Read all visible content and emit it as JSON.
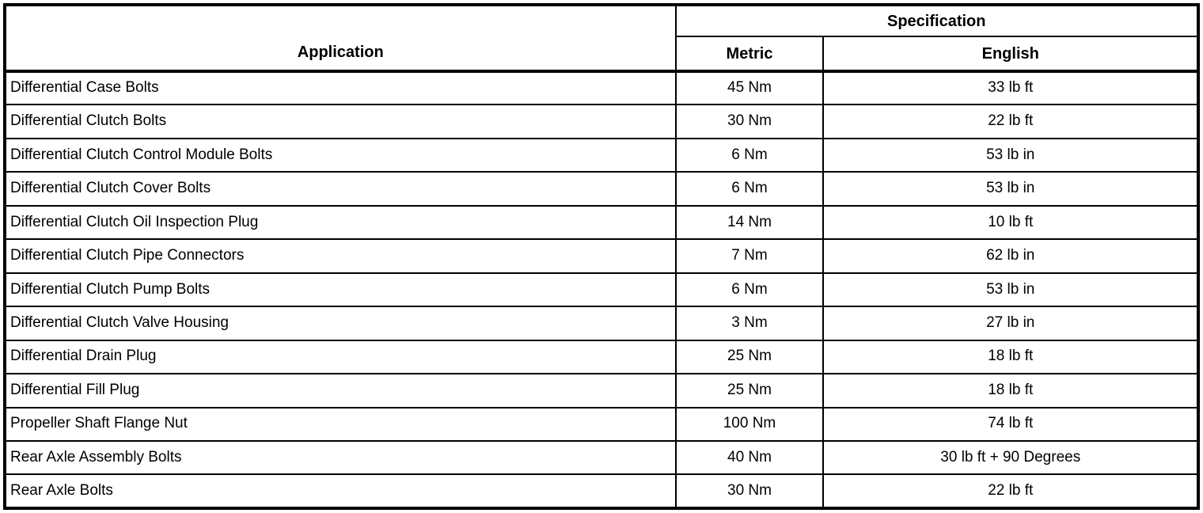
{
  "colors": {
    "border": "#000000",
    "background": "#ffffff",
    "text": "#000000"
  },
  "table": {
    "header": {
      "application": "Application",
      "specification": "Specification",
      "metric": "Metric",
      "english": "English"
    },
    "rows": [
      {
        "application": "Differential Case Bolts",
        "metric": "45 Nm",
        "english": "33 lb ft"
      },
      {
        "application": "Differential Clutch Bolts",
        "metric": "30 Nm",
        "english": "22 lb ft"
      },
      {
        "application": "Differential Clutch Control Module Bolts",
        "metric": "6 Nm",
        "english": "53 lb in"
      },
      {
        "application": "Differential Clutch Cover Bolts",
        "metric": "6 Nm",
        "english": "53 lb in"
      },
      {
        "application": "Differential Clutch Oil Inspection Plug",
        "metric": "14 Nm",
        "english": "10 lb ft"
      },
      {
        "application": "Differential Clutch Pipe Connectors",
        "metric": "7 Nm",
        "english": "62 lb in"
      },
      {
        "application": "Differential Clutch Pump Bolts",
        "metric": "6 Nm",
        "english": "53 lb in"
      },
      {
        "application": "Differential Clutch Valve Housing",
        "metric": "3 Nm",
        "english": "27 lb in"
      },
      {
        "application": "Differential Drain Plug",
        "metric": "25 Nm",
        "english": "18 lb ft"
      },
      {
        "application": "Differential Fill Plug",
        "metric": "25 Nm",
        "english": "18 lb ft"
      },
      {
        "application": "Propeller Shaft Flange Nut",
        "metric": "100 Nm",
        "english": "74 lb ft"
      },
      {
        "application": "Rear Axle Assembly Bolts",
        "metric": "40 Nm",
        "english": "30 lb ft + 90 Degrees"
      },
      {
        "application": "Rear Axle Bolts",
        "metric": "30 Nm",
        "english": "22 lb ft"
      }
    ]
  }
}
